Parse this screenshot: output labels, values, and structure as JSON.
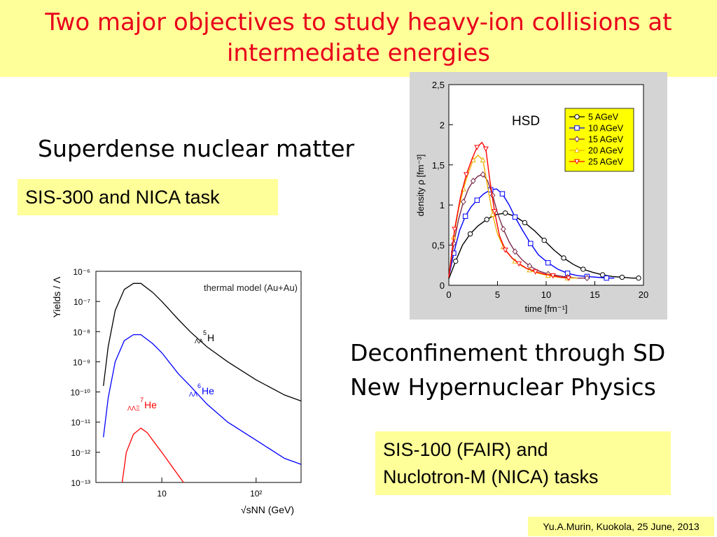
{
  "slide": {
    "title_line1": "Two major objectives to study heavy-ion collisions at",
    "title_line2": "intermediate energies",
    "subtitle1": "Superdense nuclear matter",
    "tag1": "SIS-300 and NICA task",
    "subtitle2_line1": "Deconfinement through SD",
    "subtitle2_line2": "New Hypernuclear Physics",
    "tag2_line1": "SIS-100 (FAIR) and",
    "tag2_line2": "Nuclotron-M (NICA)  tasks",
    "footer": "Yu.A.Murin, Kuokola, 25 June, 2013"
  },
  "colors": {
    "title": "#e8001b",
    "highlight": "#ffff99",
    "hsd_bg": "#d4d4d4",
    "legend_bg": "#ffff00"
  },
  "chart_data": [
    {
      "type": "line",
      "title": "",
      "annotation": "thermal model (Au+Au)",
      "xlabel": "√sNN (GeV)",
      "ylabel": "Yields / Λ",
      "xscale": "log",
      "yscale": "log",
      "xlim": [
        2,
        300
      ],
      "ylim": [
        1e-13,
        1e-06
      ],
      "x_ticks": [
        "10",
        "10²"
      ],
      "y_ticks": [
        "10⁻⁶",
        "10⁻⁷",
        "10⁻⁸",
        "10⁻⁹",
        "10⁻¹⁰",
        "10⁻¹¹",
        "10⁻¹²",
        "10⁻¹³"
      ],
      "series": [
        {
          "name": "ΛΛ5H",
          "color": "#000000",
          "label_sup": "5",
          "label_sub": "ΛΛ",
          "label_main": "H",
          "x": [
            2.4,
            2.7,
            3.2,
            4,
            5,
            6,
            8,
            10,
            15,
            20,
            30,
            50,
            100,
            200,
            300
          ],
          "y": [
            -9.8,
            -8.5,
            -7.3,
            -6.6,
            -6.4,
            -6.4,
            -6.7,
            -7,
            -7.6,
            -8,
            -8.5,
            -9,
            -9.6,
            -10.1,
            -10.3
          ]
        },
        {
          "name": "ΛΛ6He",
          "color": "#0000ff",
          "label_sup": "6",
          "label_sub": "ΛΛ",
          "label_main": "He",
          "x": [
            2.4,
            2.7,
            3.2,
            4,
            5,
            6,
            8,
            10,
            15,
            20,
            30,
            50,
            100,
            200,
            300
          ],
          "y": [
            -11.5,
            -10.2,
            -9,
            -8.3,
            -8.1,
            -8.1,
            -8.4,
            -8.7,
            -9.4,
            -9.8,
            -10.4,
            -11,
            -11.6,
            -12.2,
            -12.4
          ]
        },
        {
          "name": "ΛΛΞ7He",
          "color": "#ff0000",
          "label_sup": "7",
          "label_sub": "ΛΛΞ",
          "label_main": "He",
          "x": [
            3.8,
            4.2,
            5,
            6,
            7,
            8,
            10,
            13,
            17
          ],
          "y": [
            -13,
            -12,
            -11.4,
            -11.2,
            -11.35,
            -11.6,
            -12,
            -12.5,
            -13
          ]
        }
      ]
    },
    {
      "type": "line",
      "title": "",
      "annotation": "HSD",
      "xlabel": "time [fm⁻¹]",
      "ylabel": "density ρ [fm⁻³]",
      "xlim": [
        0,
        20
      ],
      "ylim": [
        0,
        2.5
      ],
      "x_ticks": [
        "0",
        "5",
        "10",
        "15",
        "20"
      ],
      "y_ticks": [
        "0",
        "0,5",
        "1",
        "1,5",
        "2",
        "2,5"
      ],
      "legend_position": "top-right",
      "series": [
        {
          "name": "5 AGeV",
          "color": "#000000",
          "marker": "circle",
          "x": [
            0,
            0.7,
            1.4,
            2.2,
            3,
            3.9,
            4.8,
            5.8,
            6.8,
            7.8,
            8.8,
            9.8,
            10.8,
            11.8,
            12.8,
            13.8,
            14.8,
            15.8,
            16.8,
            17.8,
            18.8,
            19.5
          ],
          "y": [
            0.08,
            0.3,
            0.5,
            0.64,
            0.74,
            0.82,
            0.88,
            0.9,
            0.86,
            0.78,
            0.68,
            0.56,
            0.44,
            0.34,
            0.26,
            0.2,
            0.16,
            0.13,
            0.11,
            0.1,
            0.09,
            0.09
          ]
        },
        {
          "name": "10 AGeV",
          "color": "#0000ff",
          "marker": "square",
          "x": [
            0,
            0.5,
            1.1,
            1.7,
            2.3,
            2.9,
            3.6,
            4.3,
            4.9,
            5.5,
            6.2,
            6.8,
            7.6,
            8.4,
            9.2,
            10.2,
            11.2,
            12.2,
            13.2,
            14.2,
            15.2,
            16.2,
            17
          ],
          "y": [
            0.1,
            0.4,
            0.68,
            0.86,
            0.98,
            1.06,
            1.14,
            1.19,
            1.2,
            1.14,
            1.0,
            0.85,
            0.68,
            0.52,
            0.38,
            0.28,
            0.2,
            0.15,
            0.12,
            0.11,
            0.1,
            0.09,
            0.09
          ]
        },
        {
          "name": "15 AGeV",
          "color": "#7a2a4a",
          "marker": "diamond",
          "x": [
            0,
            0.5,
            1.0,
            1.5,
            2.0,
            2.5,
            3.0,
            3.5,
            4.0,
            4.5,
            5.0,
            5.6,
            6.2,
            6.8,
            7.5,
            8.3,
            9.2,
            10.2,
            11.2,
            12.2,
            13.2,
            14.2
          ],
          "y": [
            0.1,
            0.52,
            0.82,
            1.04,
            1.2,
            1.3,
            1.36,
            1.38,
            1.3,
            1.12,
            0.9,
            0.7,
            0.54,
            0.42,
            0.32,
            0.24,
            0.18,
            0.14,
            0.12,
            0.1,
            0.09,
            0.09
          ]
        },
        {
          "name": "20 AGeV",
          "color": "#f0b000",
          "marker": "triangle-up",
          "x": [
            0,
            0.5,
            1.0,
            1.5,
            2.0,
            2.5,
            3.0,
            3.5,
            4.0,
            4.5,
            5.0,
            5.6,
            6.2,
            6.8,
            7.5,
            8.3,
            9.2,
            10.2,
            11.2,
            12.2,
            13.2
          ],
          "y": [
            0.1,
            0.6,
            0.95,
            1.2,
            1.4,
            1.56,
            1.62,
            1.56,
            1.22,
            0.88,
            0.64,
            0.48,
            0.38,
            0.3,
            0.24,
            0.19,
            0.15,
            0.12,
            0.1,
            0.09,
            0.09
          ]
        },
        {
          "name": "25 AGeV",
          "color": "#ff0000",
          "marker": "triangle-down",
          "x": [
            0,
            0.6,
            1.2,
            1.8,
            2.4,
            2.9,
            3.4,
            3.8,
            4.2,
            4.7,
            5.2,
            5.8,
            6.5,
            7.2,
            8.0,
            8.9,
            9.8,
            10.7,
            11.5,
            12.3
          ],
          "y": [
            0.1,
            0.7,
            1.1,
            1.38,
            1.58,
            1.72,
            1.78,
            1.7,
            1.32,
            0.92,
            0.62,
            0.44,
            0.34,
            0.27,
            0.21,
            0.17,
            0.14,
            0.12,
            0.1,
            0.09
          ]
        }
      ]
    }
  ]
}
